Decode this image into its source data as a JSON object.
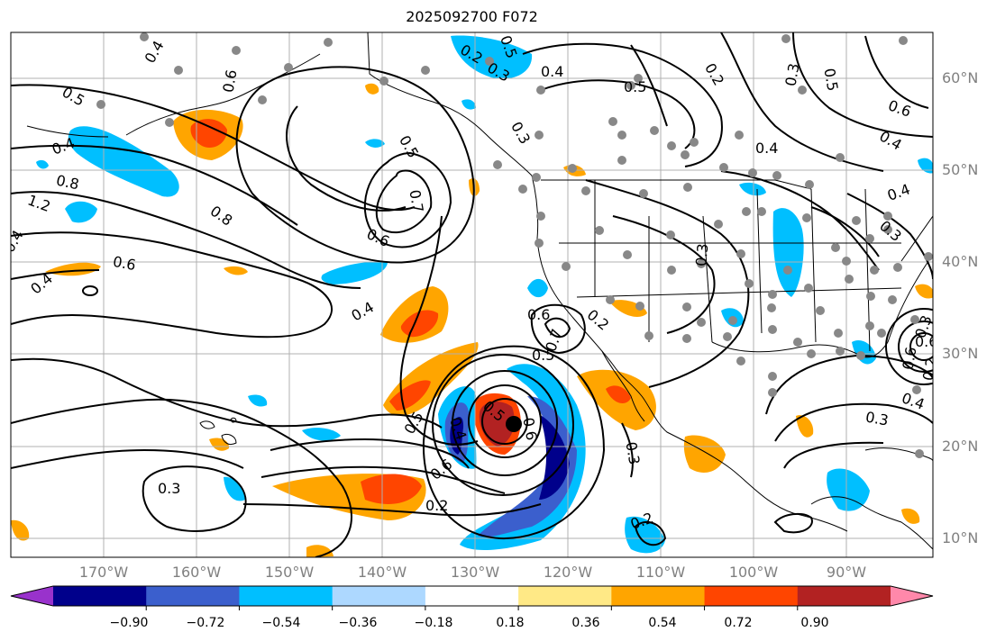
{
  "title": "2025092700 F072",
  "lat_labels": [
    "60°N",
    "50°N",
    "40°N",
    "30°N",
    "20°N",
    "10°N"
  ],
  "lon_labels": [
    "170°W",
    "160°W",
    "150°W",
    "140°W",
    "130°W",
    "120°W",
    "110°W",
    "100°W",
    "90°W"
  ],
  "colorbar": {
    "colors": [
      "#9932cc",
      "#00008b",
      "#3b5fcd",
      "#00bfff",
      "#add8ff",
      "#ffffff",
      "#ffe986",
      "#ffa500",
      "#ff4500",
      "#b22222",
      "#ff88aa"
    ],
    "tick_labels": [
      "−0.90",
      "−0.72",
      "−0.54",
      "−0.36",
      "−0.18",
      "0.18",
      "0.36",
      "0.54",
      "0.72",
      "0.90"
    ]
  },
  "contour_labels": [
    "0.5",
    "0.4",
    "1.2",
    "0.8",
    "0.6",
    "0.4",
    "0.8",
    "0.6",
    "0.5",
    "0.7",
    "0.6",
    "0.4",
    "0.3",
    "0.2",
    "0.5",
    "0.6",
    "0.4",
    "0.5",
    "0.6",
    "0.2",
    "0.3",
    "0.5",
    "0.4",
    "0.3",
    "0.2",
    "0.5",
    "0.6",
    "0.7",
    "0.5",
    "0.4",
    "0.6",
    "0.3",
    "0.3",
    "0.2",
    "0.3",
    "0.4",
    "0.3",
    "0.4",
    "0.6",
    "0.3",
    "0.5",
    "0.2",
    "0.4",
    "0.4",
    "0.3",
    "0.4",
    "0.6",
    "0.2"
  ],
  "features": {
    "storm_marker": "black-circle",
    "station_marker_color": "#888888"
  }
}
